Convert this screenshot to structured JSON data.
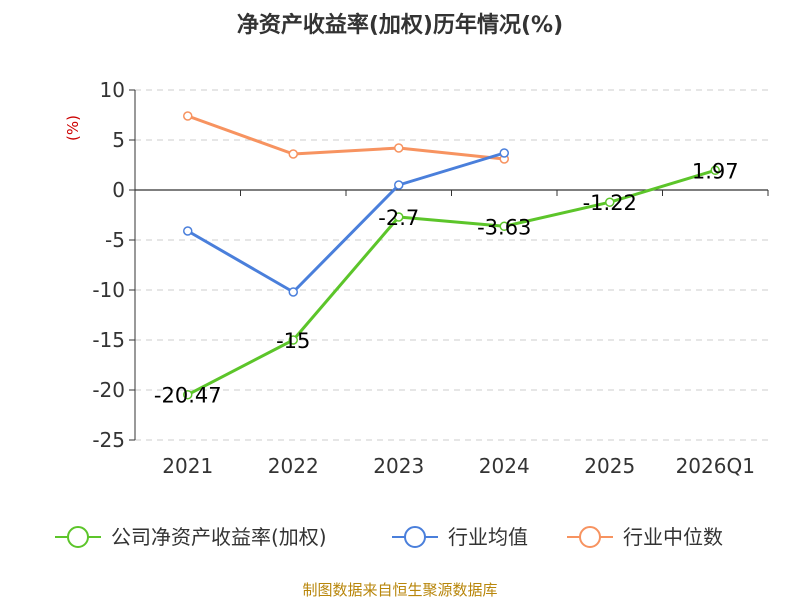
{
  "chart_data": {
    "type": "line",
    "title": "净资产收益率(加权)历年情况(%)",
    "ylabel": "(%)",
    "categories": [
      "2021",
      "2022",
      "2023",
      "2024",
      "2025",
      "2026Q1"
    ],
    "y_ticks": [
      "10",
      "5",
      "0",
      "-5",
      "-10",
      "-15",
      "-20",
      "-25"
    ],
    "ylim": [
      -25,
      10
    ],
    "grid": true,
    "legend_position": "bottom",
    "series": [
      {
        "name": "公司净资产收益率(加权)",
        "color": "#5cc52a",
        "values": [
          -20.47,
          -15,
          -2.7,
          -3.63,
          -1.22,
          1.97
        ],
        "data_labels": [
          "-20.47",
          "-15",
          "-2.7",
          "-3.63",
          "-1.22",
          "1.97"
        ]
      },
      {
        "name": "行业均值",
        "color": "#4a7fdb",
        "values": [
          -4.1,
          -10.2,
          0.5,
          3.7,
          null,
          null
        ]
      },
      {
        "name": "行业中位数",
        "color": "#f79360",
        "values": [
          7.4,
          3.6,
          4.2,
          3.1,
          null,
          null
        ]
      }
    ],
    "source": "制图数据来自恒生聚源数据库"
  }
}
